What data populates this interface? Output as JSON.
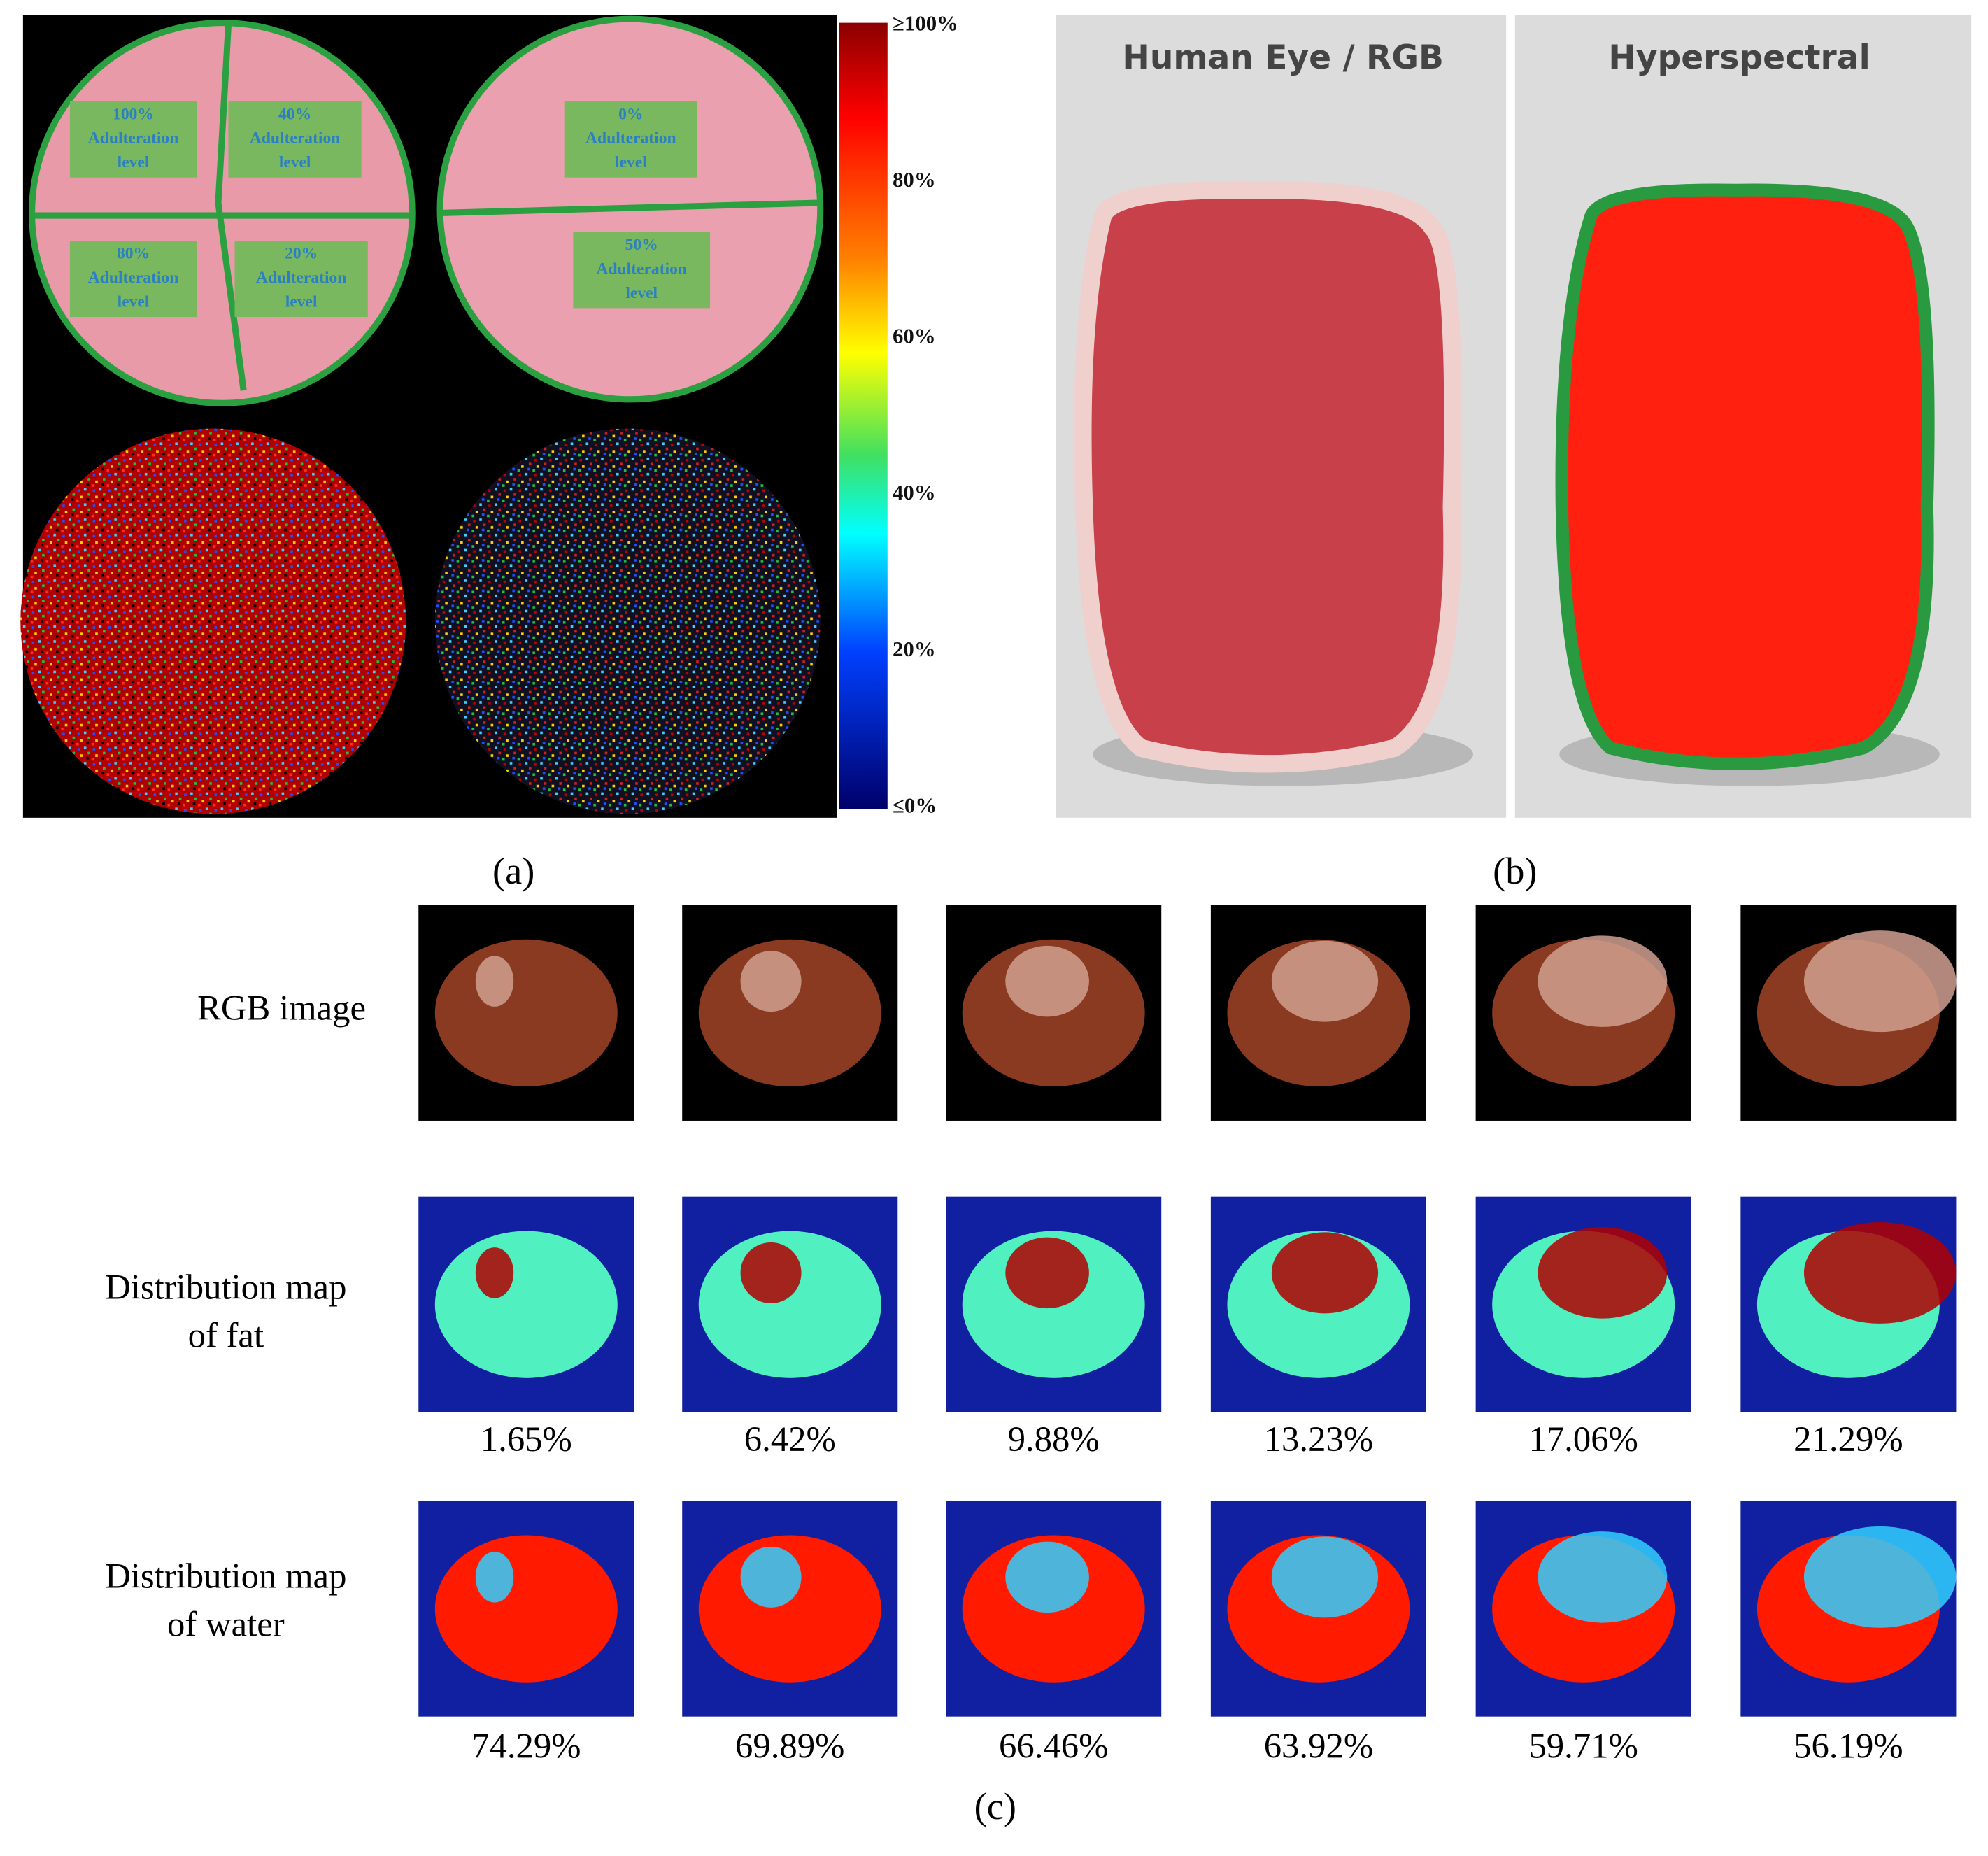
{
  "panel_a": {
    "samples": [
      {
        "lines": [
          "100%",
          "Adulteration",
          "level"
        ]
      },
      {
        "lines": [
          "40%",
          "Adulteration",
          "level"
        ]
      },
      {
        "lines": [
          "80%",
          "Adulteration",
          "level"
        ]
      },
      {
        "lines": [
          "20%",
          "Adulteration",
          "level"
        ]
      },
      {
        "lines": [
          "0%",
          "Adulteration",
          "level"
        ]
      },
      {
        "lines": [
          "50%",
          "Adulteration",
          "level"
        ]
      }
    ],
    "colorbar_ticks": [
      "≥100%",
      "80%",
      "60%",
      "40%",
      "20%",
      "≤0%"
    ],
    "caption": "(a)"
  },
  "panel_b": {
    "titles": [
      "Human Eye / RGB",
      "Hyperspectral"
    ],
    "caption": "(b)"
  },
  "panel_c": {
    "row_labels": [
      [
        "RGB image"
      ],
      [
        "Distribution map",
        "of fat"
      ],
      [
        "Distribution map",
        "of water"
      ]
    ],
    "fat": [
      "1.65%",
      "6.42%",
      "9.88%",
      "13.23%",
      "17.06%",
      "21.29%"
    ],
    "water": [
      "74.29%",
      "69.89%",
      "66.46%",
      "63.92%",
      "59.71%",
      "56.19%"
    ],
    "caption": "(c)"
  }
}
